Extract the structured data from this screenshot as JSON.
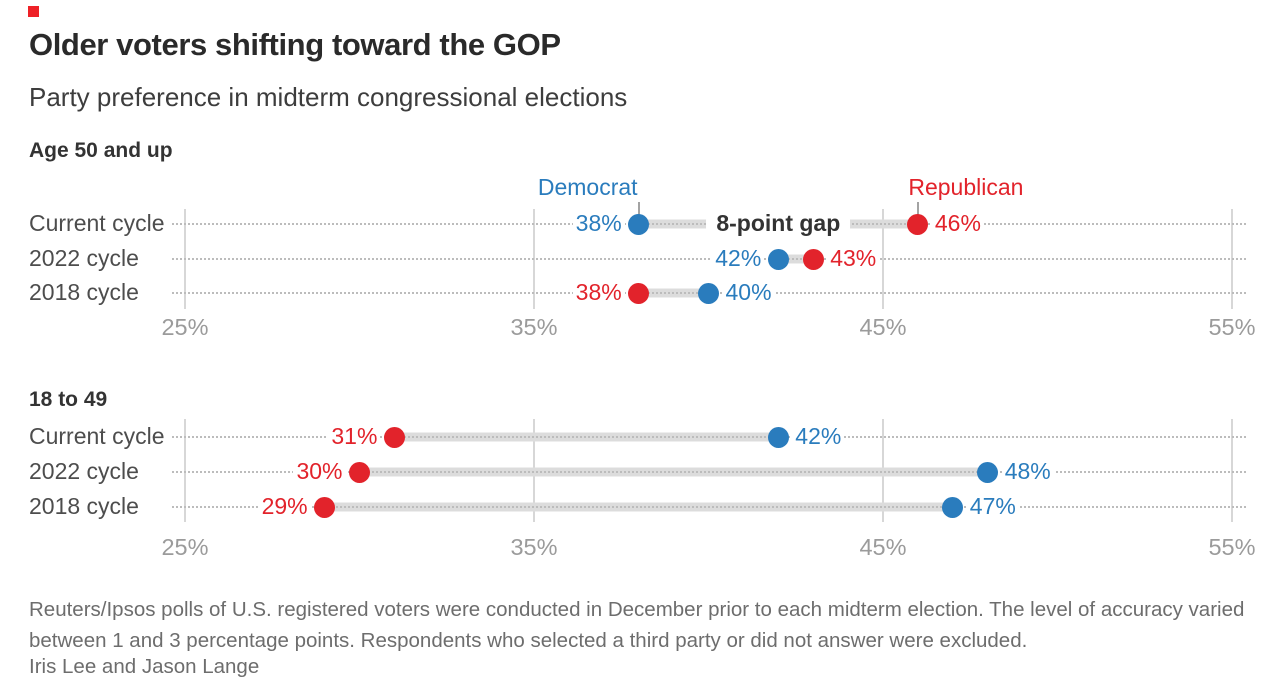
{
  "brand": {
    "mark_color": "#ee2127"
  },
  "header": {
    "title": "Older voters shifting toward the GOP",
    "subtitle": "Party preference in midterm congressional elections"
  },
  "colors": {
    "democrat": "#2a7cbd",
    "republican": "#e2232b",
    "connector": "#dcdcdc"
  },
  "chart_data": [
    {
      "type": "scatter",
      "variant": "dumbbell",
      "title": "Age 50 and up",
      "categories": [
        "Current cycle",
        "2022 cycle",
        "2018 cycle"
      ],
      "series": [
        {
          "name": "Democrat",
          "values": [
            38,
            42,
            40
          ]
        },
        {
          "name": "Republican",
          "values": [
            46,
            43,
            38
          ]
        }
      ],
      "unit": "%",
      "xlim": [
        25,
        55
      ],
      "x_ticks": [
        "25%",
        "35%",
        "45%",
        "55%"
      ],
      "grid": true,
      "legend": true,
      "legend_position": "top",
      "annotations": [
        {
          "row": 0,
          "text": "8-point gap"
        }
      ]
    },
    {
      "type": "scatter",
      "variant": "dumbbell",
      "title": "18 to 49",
      "categories": [
        "Current cycle",
        "2022 cycle",
        "2018 cycle"
      ],
      "series": [
        {
          "name": "Democrat",
          "values": [
            42,
            48,
            47
          ]
        },
        {
          "name": "Republican",
          "values": [
            31,
            30,
            29
          ]
        }
      ],
      "unit": "%",
      "xlim": [
        25,
        55
      ],
      "x_ticks": [
        "25%",
        "35%",
        "45%",
        "55%"
      ],
      "grid": true,
      "legend": false,
      "annotations": []
    }
  ],
  "footer": {
    "note": "Reuters/Ipsos polls of U.S. registered voters were conducted in December prior to each midterm election. The level of accuracy varied between 1 and 3 percentage points. Respondents who selected a third party or did not answer were excluded.",
    "byline": "Iris Lee and Jason Lange"
  }
}
